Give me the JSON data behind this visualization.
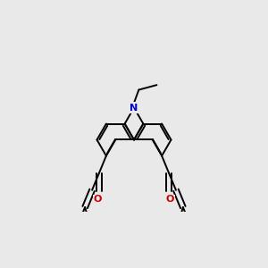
{
  "bg_color": "#e9e9e9",
  "bond_color": "#000000",
  "nitrogen_color": "#0000cc",
  "oxygen_color": "#cc0000",
  "lw": 1.4,
  "figsize": [
    3.0,
    3.0
  ],
  "dpi": 100,
  "xlim": [
    -1.1,
    1.1
  ],
  "ylim": [
    -0.55,
    0.75
  ]
}
